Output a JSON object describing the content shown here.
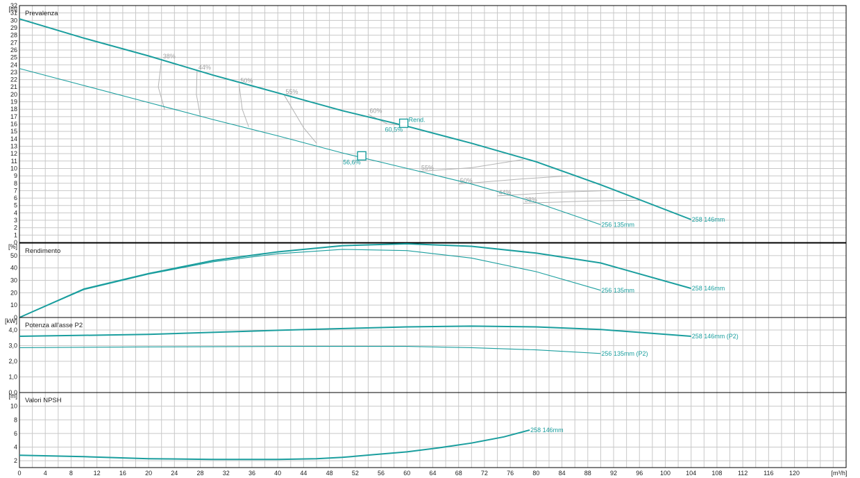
{
  "colors": {
    "curve": "#1a9e9e",
    "grid": "#c8c8c8",
    "axis": "#000000",
    "iso": "#b4b4b4",
    "text": "#222222"
  },
  "x_axis": {
    "unit": "[m³/h]",
    "ticks": [
      0,
      4,
      8,
      12,
      16,
      20,
      24,
      28,
      32,
      36,
      40,
      44,
      48,
      52,
      56,
      60,
      64,
      68,
      72,
      76,
      80,
      84,
      88,
      92,
      96,
      100,
      104,
      108,
      112,
      116,
      120
    ]
  },
  "chart_data": [
    {
      "type": "line",
      "title": "Prevalenza",
      "ylabel": "[m]",
      "xlim": [
        0,
        128
      ],
      "ylim": [
        0,
        32
      ],
      "y_ticks": [
        0,
        1,
        2,
        3,
        4,
        5,
        6,
        7,
        8,
        9,
        10,
        11,
        12,
        13,
        14,
        15,
        16,
        17,
        18,
        19,
        20,
        21,
        22,
        23,
        24,
        25,
        26,
        27,
        28,
        29,
        30,
        31,
        32
      ],
      "series": [
        {
          "name": "258 146mm",
          "x": [
            0,
            10,
            20,
            30,
            40,
            50,
            60,
            70,
            80,
            90,
            104
          ],
          "y": [
            30.2,
            27.6,
            25.2,
            22.6,
            20.2,
            17.8,
            15.7,
            13.4,
            10.9,
            7.8,
            3.1
          ]
        },
        {
          "name": "256 135mm",
          "x": [
            0,
            10,
            20,
            30,
            40,
            50,
            60,
            70,
            80,
            90
          ],
          "y": [
            23.5,
            21.2,
            18.9,
            16.6,
            14.4,
            12.1,
            10.0,
            7.9,
            5.4,
            2.4
          ]
        }
      ],
      "efficiency_isolines": [
        {
          "label": "38%",
          "x": [
            22,
            21.5,
            22.5
          ],
          "y": [
            24.7,
            21,
            17.9
          ]
        },
        {
          "label": "44%",
          "x": [
            27.5,
            27.4,
            28
          ],
          "y": [
            23.2,
            20,
            17.1
          ]
        },
        {
          "label": "50%",
          "x": [
            34,
            34.5,
            35.5
          ],
          "y": [
            21.4,
            18,
            15.6
          ]
        },
        {
          "label": "55%",
          "x": [
            41,
            44,
            46
          ],
          "y": [
            19.9,
            15.5,
            13.4
          ]
        },
        {
          "label": "60%",
          "x": [
            54,
            57,
            60
          ],
          "y": [
            17.3,
            16,
            15.8
          ]
        },
        {
          "label": "55%",
          "x": [
            62,
            70,
            78
          ],
          "y": [
            9.6,
            10.1,
            11.2
          ]
        },
        {
          "label": "50%",
          "x": [
            68,
            78,
            85
          ],
          "y": [
            7.9,
            8.6,
            9.0
          ]
        },
        {
          "label": "44%",
          "x": [
            74,
            84,
            91
          ],
          "y": [
            6.3,
            6.8,
            7.0
          ]
        },
        {
          "label": "38%",
          "x": [
            78,
            88,
            96
          ],
          "y": [
            5.3,
            5.6,
            5.7
          ]
        }
      ],
      "markers": [
        {
          "label": "60,5%",
          "x": 59.5,
          "y": 16.1
        },
        {
          "label": "56,6%",
          "x": 53,
          "y": 11.7
        }
      ],
      "annotation": "Rend."
    },
    {
      "type": "line",
      "title": "Rendimento",
      "ylabel": "[%]",
      "xlim": [
        0,
        128
      ],
      "ylim": [
        0,
        60
      ],
      "y_ticks": [
        0,
        10,
        20,
        30,
        40,
        50
      ],
      "series": [
        {
          "name": "258 146mm",
          "x": [
            0,
            10,
            20,
            30,
            40,
            50,
            60,
            70,
            80,
            90,
            104
          ],
          "y": [
            0,
            23,
            35.5,
            46,
            53,
            58,
            59.5,
            57.5,
            52,
            44,
            23.5
          ]
        },
        {
          "name": "256 135mm",
          "x": [
            0,
            10,
            20,
            30,
            40,
            50,
            60,
            70,
            80,
            90
          ],
          "y": [
            0,
            22.5,
            35,
            45,
            51.5,
            55,
            54,
            48,
            37,
            22
          ]
        }
      ]
    },
    {
      "type": "line",
      "title": "Potenza all'asse P2",
      "ylabel": "[kW]",
      "xlim": [
        0,
        128
      ],
      "ylim": [
        0,
        4.8
      ],
      "y_ticks": [
        "0,0",
        "1,0",
        "2,0",
        "3,0",
        "4,0"
      ],
      "y_tick_values": [
        0,
        1,
        2,
        3,
        4
      ],
      "series": [
        {
          "name": "258 146mm (P2)",
          "x": [
            0,
            20,
            40,
            60,
            70,
            80,
            90,
            104
          ],
          "y": [
            3.6,
            3.72,
            3.98,
            4.2,
            4.25,
            4.2,
            4.03,
            3.6
          ]
        },
        {
          "name": "256 135mm (P2)",
          "x": [
            0,
            20,
            40,
            60,
            70,
            80,
            90
          ],
          "y": [
            2.87,
            2.92,
            2.95,
            2.95,
            2.87,
            2.73,
            2.5
          ]
        }
      ]
    },
    {
      "type": "line",
      "title": "Valori NPSH",
      "ylabel": "[m]",
      "xlim": [
        0,
        128
      ],
      "ylim": [
        1,
        12
      ],
      "y_ticks": [
        2,
        4,
        6,
        8,
        10
      ],
      "series": [
        {
          "name": "258 146mm",
          "x": [
            0,
            10,
            20,
            30,
            40,
            46,
            50,
            55,
            60,
            65,
            70,
            75,
            79
          ],
          "y": [
            2.8,
            2.6,
            2.3,
            2.2,
            2.2,
            2.3,
            2.5,
            2.9,
            3.3,
            3.9,
            4.6,
            5.5,
            6.5
          ]
        }
      ]
    }
  ]
}
